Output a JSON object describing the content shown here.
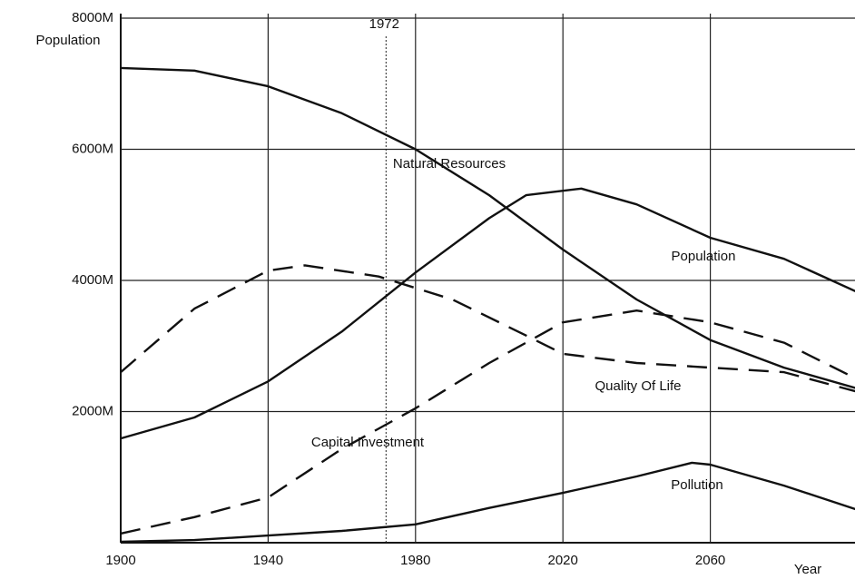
{
  "chart_data": {
    "type": "line",
    "y_label": "Population",
    "x_label": "Year",
    "xlim": [
      1900,
      2100
    ],
    "ylim": [
      0,
      8000
    ],
    "xticks": [
      1900,
      1940,
      1980,
      2020,
      2060
    ],
    "yticks": [
      {
        "value": 2000,
        "label": "2000M"
      },
      {
        "value": 4000,
        "label": "4000M"
      },
      {
        "value": 6000,
        "label": "6000M"
      },
      {
        "value": 8000,
        "label": "8000M"
      }
    ],
    "grid": true,
    "annotations": [
      {
        "text": "1972",
        "x": 1972
      }
    ],
    "series": [
      {
        "name": "Natural Resources",
        "color": "#111111",
        "dash": false,
        "x": [
          1900,
          1920,
          1940,
          1960,
          1980,
          2000,
          2020,
          2040,
          2060,
          2080,
          2100
        ],
        "values": [
          7240,
          7200,
          6960,
          6550,
          6000,
          5300,
          4470,
          3710,
          3090,
          2670,
          2350
        ]
      },
      {
        "name": "Population",
        "color": "#111111",
        "dash": false,
        "x": [
          1900,
          1920,
          1940,
          1960,
          1980,
          2000,
          2010,
          2025,
          2040,
          2060,
          2080,
          2100
        ],
        "values": [
          1590,
          1910,
          2460,
          3220,
          4120,
          4950,
          5300,
          5400,
          5160,
          4650,
          4330,
          3820
        ]
      },
      {
        "name": "Quality Of Life",
        "color": "#111111",
        "dash": true,
        "x": [
          1900,
          1920,
          1940,
          1950,
          1970,
          1990,
          2010,
          2020,
          2040,
          2060,
          2080,
          2100
        ],
        "values": [
          2600,
          3570,
          4150,
          4230,
          4060,
          3710,
          3160,
          2880,
          2740,
          2670,
          2600,
          2300
        ]
      },
      {
        "name": "Capital Investment",
        "color": "#111111",
        "dash": true,
        "x": [
          1900,
          1920,
          1940,
          1960,
          1980,
          2000,
          2020,
          2040,
          2060,
          2080,
          2100
        ],
        "values": [
          140,
          390,
          690,
          1430,
          2050,
          2740,
          3360,
          3540,
          3360,
          3050,
          2490
        ]
      },
      {
        "name": "Pollution",
        "color": "#111111",
        "dash": false,
        "x": [
          1900,
          1920,
          1940,
          1960,
          1980,
          2000,
          2020,
          2040,
          2055,
          2060,
          2080,
          2100
        ],
        "values": [
          14,
          40,
          110,
          180,
          280,
          530,
          760,
          1010,
          1220,
          1190,
          870,
          500
        ]
      }
    ]
  }
}
